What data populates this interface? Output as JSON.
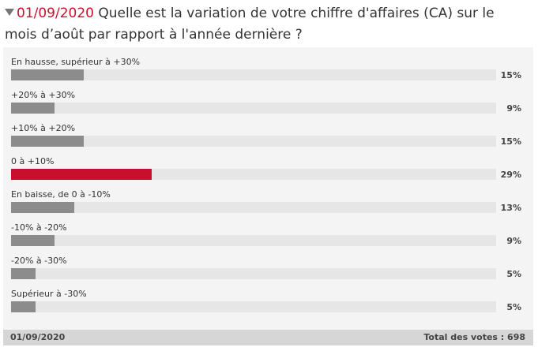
{
  "poll": {
    "date": "01/09/2020",
    "question": " Quelle est la variation de votre chiffre d'affaires (CA) sur le mois d’août par rapport à l'année dernière ?",
    "options": [
      {
        "label": "En hausse, supérieur à +30%",
        "percent_label": "15%",
        "percent": 15,
        "highlight": false
      },
      {
        "label": "+20% à +30%",
        "percent_label": "9%",
        "percent": 9,
        "highlight": false
      },
      {
        "label": "+10% à +20%",
        "percent_label": "15%",
        "percent": 15,
        "highlight": false
      },
      {
        "label": "0 à +10%",
        "percent_label": "29%",
        "percent": 29,
        "highlight": true
      },
      {
        "label": "En baisse, de 0 à -10%",
        "percent_label": "13%",
        "percent": 13,
        "highlight": false
      },
      {
        "label": "-10% à -20%",
        "percent_label": "9%",
        "percent": 9,
        "highlight": false
      },
      {
        "label": "-20% à -30%",
        "percent_label": "5%",
        "percent": 5,
        "highlight": false
      },
      {
        "label": "Supérieur à -30%",
        "percent_label": "5%",
        "percent": 5,
        "highlight": false
      }
    ],
    "footer": {
      "date": "01/09/2020",
      "total_votes": "Total des votes : 698"
    }
  },
  "colors": {
    "accent": "#c8102e",
    "bar": "#8c8c8c",
    "track": "#e6e6e6",
    "panel": "#f4f4f4",
    "footer": "#d6d6d6"
  },
  "icons": {
    "header_marker": "triangle-down-icon"
  }
}
